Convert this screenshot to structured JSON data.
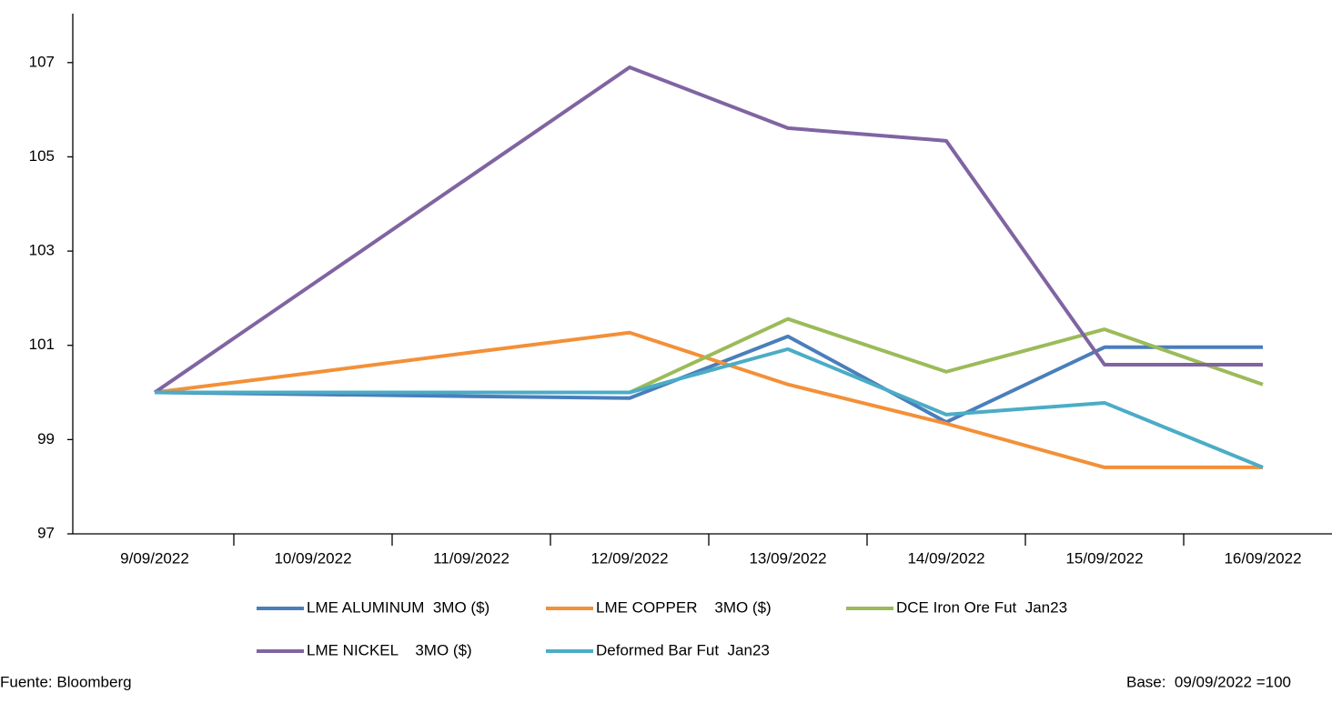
{
  "chart_data": {
    "type": "line",
    "categories": [
      "9/09/2022",
      "10/09/2022",
      "11/09/2022",
      "12/09/2022",
      "13/09/2022",
      "14/09/2022",
      "15/09/2022",
      "16/09/2022"
    ],
    "series": [
      {
        "name": "LME ALUMINUM  3MO ($)",
        "color": "#4a7ebb",
        "values": [
          100,
          99.96,
          99.92,
          99.88,
          101.19,
          99.37,
          100.96,
          100.96
        ]
      },
      {
        "name": "LME COPPER    3MO ($)",
        "color": "#f39038",
        "values": [
          100,
          100.42,
          100.85,
          101.27,
          100.17,
          99.34,
          98.41,
          98.41
        ]
      },
      {
        "name": "DCE Iron Ore Fut  Jan23",
        "color": "#9bbb59",
        "values": [
          100,
          100,
          100,
          100,
          101.56,
          100.44,
          101.34,
          100.17
        ]
      },
      {
        "name": "LME NICKEL    3MO ($)",
        "color": "#8064a2",
        "values": [
          100,
          102.3,
          104.6,
          106.9,
          105.61,
          105.34,
          100.59,
          100.59
        ]
      },
      {
        "name": "Deformed Bar Fut  Jan23",
        "color": "#4bacc6",
        "values": [
          100,
          100,
          100,
          100,
          100.92,
          99.53,
          99.78,
          98.41
        ]
      }
    ],
    "ylim": [
      97,
      108
    ],
    "yticks": [
      97,
      99,
      101,
      103,
      105,
      107
    ],
    "source": "Fuente: Bloomberg",
    "base_note": "Base:  09/09/2022 =100"
  }
}
